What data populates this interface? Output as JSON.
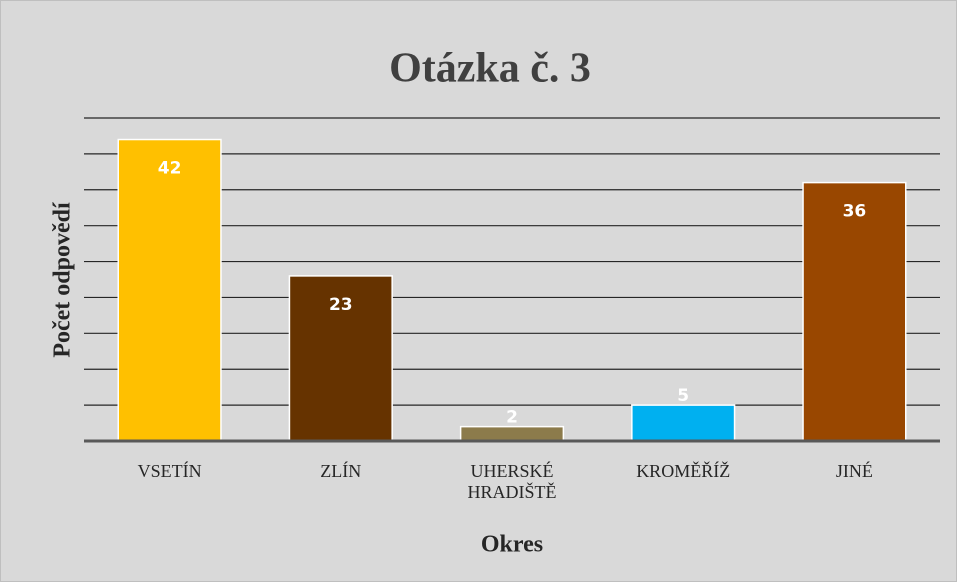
{
  "chart_data": {
    "type": "bar",
    "title": "Otázka č. 3",
    "x_label": "Okres",
    "y_label": "Počet odpovědí",
    "categories": [
      "VSETÍN",
      "ZLÍN",
      "UHERSKÉ HRADIŠTĚ",
      "KROMĚŘÍŽ",
      "JINÉ"
    ],
    "values": [
      42,
      23,
      2,
      5,
      36
    ],
    "colors": [
      "#ffc000",
      "#663300",
      "#8c7b4b",
      "#00b0f0",
      "#994700"
    ],
    "ylim": [
      0,
      45
    ],
    "yticks": [
      0,
      5,
      10,
      15,
      20,
      25,
      30,
      35,
      40,
      45
    ],
    "grid": true
  }
}
